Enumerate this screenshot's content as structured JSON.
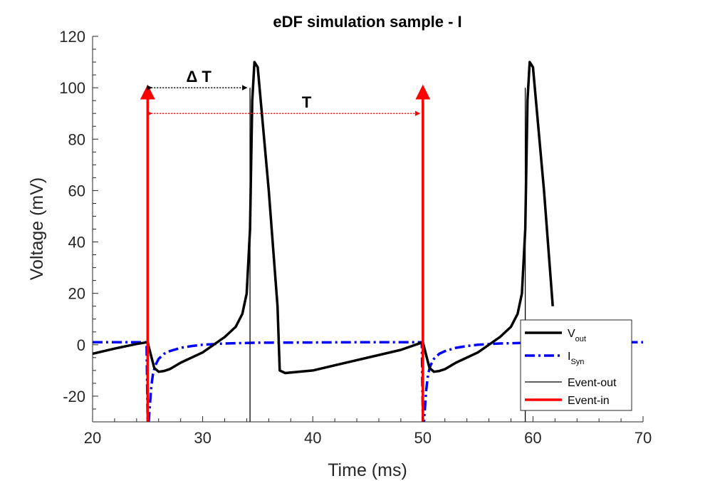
{
  "chart_data": {
    "type": "line",
    "title": "eDF simulation sample - I",
    "xlabel": "Time (ms)",
    "ylabel": "Voltage (mV)",
    "xlim": [
      20,
      70
    ],
    "ylim": [
      -30,
      120
    ],
    "xticks": [
      20,
      30,
      40,
      50,
      60,
      70
    ],
    "yticks": [
      -20,
      0,
      20,
      40,
      60,
      80,
      100,
      120
    ],
    "series": [
      {
        "name": "V_out",
        "label_main": "V",
        "label_sub": "out",
        "color": "#000000",
        "style": "solid-thick",
        "x": [
          20,
          22,
          24,
          25,
          25.3,
          25.6,
          26,
          26.5,
          27,
          28,
          30,
          32,
          33,
          33.6,
          34,
          34.3,
          34.5,
          34.7,
          35,
          36,
          36.8,
          37,
          37.5,
          40,
          44,
          48,
          50,
          50.3,
          50.6,
          51,
          51.5,
          52,
          53,
          55,
          57,
          58,
          58.6,
          59,
          59.3,
          59.5,
          59.7,
          60,
          61,
          61.8
        ],
        "y": [
          -3.5,
          -1.5,
          0.3,
          1,
          -4,
          -9,
          -10.5,
          -10.2,
          -9.5,
          -7,
          -3,
          3,
          7,
          12,
          20,
          45,
          95,
          110,
          108,
          60,
          15,
          -10,
          -11,
          -10,
          -6,
          -2,
          1,
          -4,
          -9,
          -10.5,
          -10.2,
          -9.5,
          -7,
          -3,
          3,
          7,
          12,
          20,
          45,
          95,
          110,
          108,
          60,
          15
        ]
      },
      {
        "name": "I_Syn",
        "label_main": "I",
        "label_sub": "Syn",
        "color": "#0000FF",
        "style": "dashdot",
        "x": [
          20,
          24.9,
          25,
          25.1,
          25.2,
          25.3,
          25.4,
          25.5,
          25.7,
          26,
          26.5,
          27,
          28,
          29,
          30,
          32,
          35,
          40,
          45,
          49.9,
          50,
          50.1,
          50.2,
          50.3,
          50.4,
          50.5,
          50.7,
          51,
          51.5,
          52,
          53,
          54,
          55,
          57,
          60,
          65,
          70
        ],
        "y": [
          1,
          1,
          -30,
          -30,
          -24,
          -18,
          -14,
          -11,
          -8,
          -5.5,
          -3.5,
          -2.5,
          -1.2,
          -0.5,
          0,
          0.5,
          0.8,
          0.9,
          1,
          1,
          -30,
          -30,
          -24,
          -18,
          -14,
          -11,
          -8,
          -5.5,
          -3.5,
          -2.5,
          -1.2,
          -0.5,
          0,
          0.5,
          0.8,
          0.9,
          1
        ]
      },
      {
        "name": "Event-out",
        "color": "#000000",
        "style": "solid-thin",
        "events_x": [
          34.3,
          59.3
        ],
        "event_top": 100
      },
      {
        "name": "Event-in",
        "color": "#FF0000",
        "style": "solid-red-arrow",
        "events_x": [
          25,
          50
        ],
        "event_top": 100
      }
    ],
    "annotations": [
      {
        "text": "Δ T",
        "x1": 25,
        "x2": 34.3,
        "y": 100,
        "color": "#000000"
      },
      {
        "text": "T",
        "x1": 25,
        "x2": 50,
        "y": 90,
        "color": "#FF0000"
      }
    ],
    "legend_position": "bottom-right",
    "grid": false
  }
}
